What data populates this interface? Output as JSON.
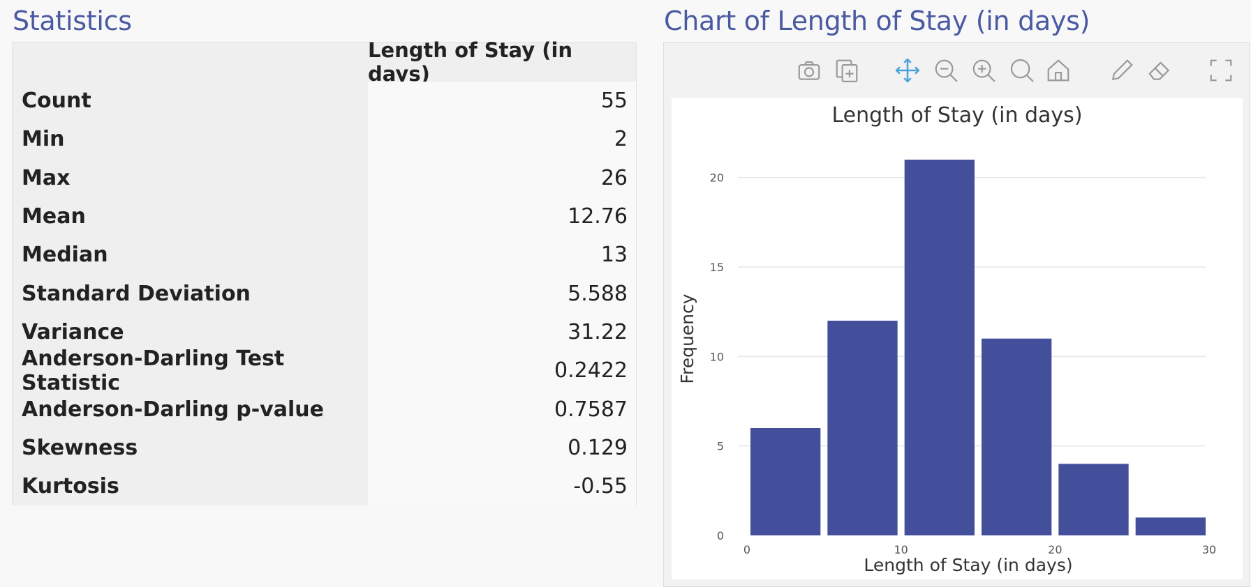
{
  "stats": {
    "title": "Statistics",
    "column_header": "Length of Stay (in days)",
    "rows": [
      {
        "label": "Count",
        "value": "55"
      },
      {
        "label": "Min",
        "value": "2"
      },
      {
        "label": "Max",
        "value": "26"
      },
      {
        "label": "Mean",
        "value": "12.76"
      },
      {
        "label": "Median",
        "value": "13"
      },
      {
        "label": "Standard Deviation",
        "value": "5.588"
      },
      {
        "label": "Variance",
        "value": "31.22"
      },
      {
        "label": "Anderson-Darling Test Statistic",
        "value": "0.2422"
      },
      {
        "label": "Anderson-Darling p-value",
        "value": "0.7587"
      },
      {
        "label": "Skewness",
        "value": "0.129"
      },
      {
        "label": "Kurtosis",
        "value": "-0.55"
      }
    ]
  },
  "chart_panel": {
    "title": "Chart of Length of Stay (in days)",
    "modebar_icons": [
      "camera-icon",
      "copy-icon",
      "pan-icon",
      "zoom-out-icon",
      "zoom-in-icon",
      "autoscale-icon",
      "home-icon",
      "draw-icon",
      "eraser-icon",
      "fullscreen-icon"
    ]
  },
  "colors": {
    "accent": "#4a5aa2",
    "bar": "#434f9b",
    "icon": "#9a9a9a",
    "pan_icon": "#4aa3d8"
  },
  "chart_data": {
    "type": "bar",
    "title": "Length of Stay (in days)",
    "xlabel": "Length of Stay (in days)",
    "ylabel": "Frequency",
    "bins": [
      {
        "x0": 0,
        "x1": 5,
        "value": 6
      },
      {
        "x0": 5,
        "x1": 10,
        "value": 12
      },
      {
        "x0": 10,
        "x1": 15,
        "value": 21
      },
      {
        "x0": 15,
        "x1": 20,
        "value": 11
      },
      {
        "x0": 20,
        "x1": 25,
        "value": 4
      },
      {
        "x0": 25,
        "x1": 30,
        "value": 1
      }
    ],
    "xticks": [
      0,
      10,
      20,
      30
    ],
    "yticks": [
      0,
      5,
      10,
      15,
      20
    ],
    "xlim": [
      0,
      30
    ],
    "ylim": [
      0,
      21
    ],
    "grid": "horizontal"
  }
}
